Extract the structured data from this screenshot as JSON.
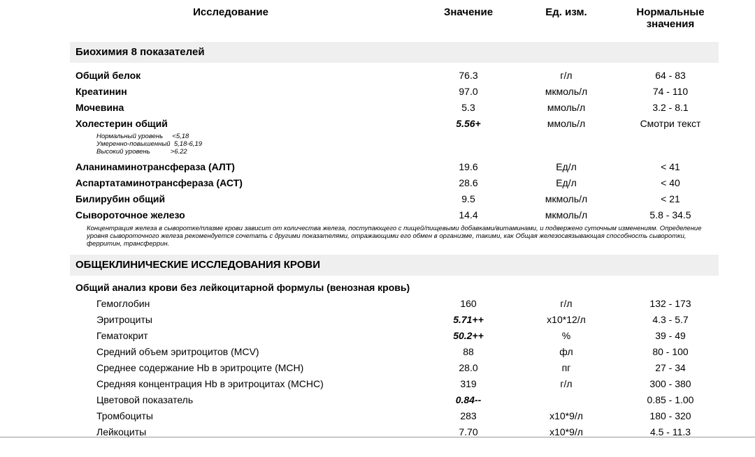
{
  "header": {
    "col1": "Исследование",
    "col2": "Значение",
    "col3": "Ед. изм.",
    "col4_line1": "Нормальные",
    "col4_line2": "значения"
  },
  "sections": [
    {
      "title": "Биохимия 8 показателей",
      "rows": [
        {
          "name": "Общий белок",
          "value": "76.3",
          "unit": "г/л",
          "norm": "64 - 83"
        },
        {
          "name": "Креатинин",
          "value": "97.0",
          "unit": "мкмоль/л",
          "norm": "74 - 110"
        },
        {
          "name": "Мочевина",
          "value": "5.3",
          "unit": "ммоль/л",
          "norm": "3.2 - 8.1"
        },
        {
          "name": "Холестерин общий",
          "value": "5.56+",
          "unit": "ммоль/л",
          "norm": "Смотри текст"
        },
        {
          "name": "Аланинаминотрансфераза (АЛТ)",
          "value": "19.6",
          "unit": "Ед/л",
          "norm": "< 41"
        },
        {
          "name": "Аспартатаминотрансфераза (АСТ)",
          "value": "28.6",
          "unit": "Ед/л",
          "norm": "< 40"
        },
        {
          "name": "Билирубин общий",
          "value": "9.5",
          "unit": "мкмоль/л",
          "norm": "< 21"
        },
        {
          "name": "Сывороточное железо",
          "value": "14.4",
          "unit": "мкмоль/л",
          "norm": "5.8 - 34.5"
        }
      ],
      "cholesterol_note": [
        "Нормальный уровень     <5,18",
        "Умеренно-повышенный  5,18-6,19",
        "Высокий уровень           >6.22"
      ],
      "iron_note": "Концентрация железа в сыворотке/плазме крови зависит от количества железа, поступающего с пищей/пищевыми добавками/витаминами, и подвержено суточным изменениям. Определение уровня сывороточного железа рекомендуется сочетать с другими показателями, отражающими его обмен в организме, такими, как Общая железосвязывающая способность сыворотки, ферритин, трансферрин."
    },
    {
      "title": "ОБЩЕКЛИНИЧЕСКИЕ ИССЛЕДОВАНИЯ КРОВИ",
      "subtitle": "Общий анализ крови без лейкоцитарной формулы (венозная кровь)",
      "rows": [
        {
          "name": "Гемоглобин",
          "value": "160",
          "unit": "г/л",
          "norm": "132 - 173"
        },
        {
          "name": "Эритроциты",
          "value": "5.71++",
          "unit": "x10*12/л",
          "norm": "4.3 - 5.7"
        },
        {
          "name": "Гематокрит",
          "value": "50.2++",
          "unit": "%",
          "norm": "39 - 49"
        },
        {
          "name": "Средний объем эритроцитов (MCV)",
          "value": "88",
          "unit": "фл",
          "norm": "80 - 100"
        },
        {
          "name": "Среднее содержание Hb в эритроците (MCH)",
          "value": "28.0",
          "unit": "пг",
          "norm": "27 - 34"
        },
        {
          "name": "Средняя концентрация Hb в эритроцитах (MCHC)",
          "value": "319",
          "unit": "г/л",
          "norm": "300 - 380"
        },
        {
          "name": "Цветовой показатель",
          "value": "0.84--",
          "unit": "",
          "norm": "0.85 - 1.00"
        },
        {
          "name": "Тромбоциты",
          "value": "283",
          "unit": "x10*9/л",
          "norm": "180 - 320"
        },
        {
          "name": "Лейкоциты",
          "value": "7.70",
          "unit": "x10*9/л",
          "norm": "4.5 - 11.3"
        }
      ]
    }
  ]
}
